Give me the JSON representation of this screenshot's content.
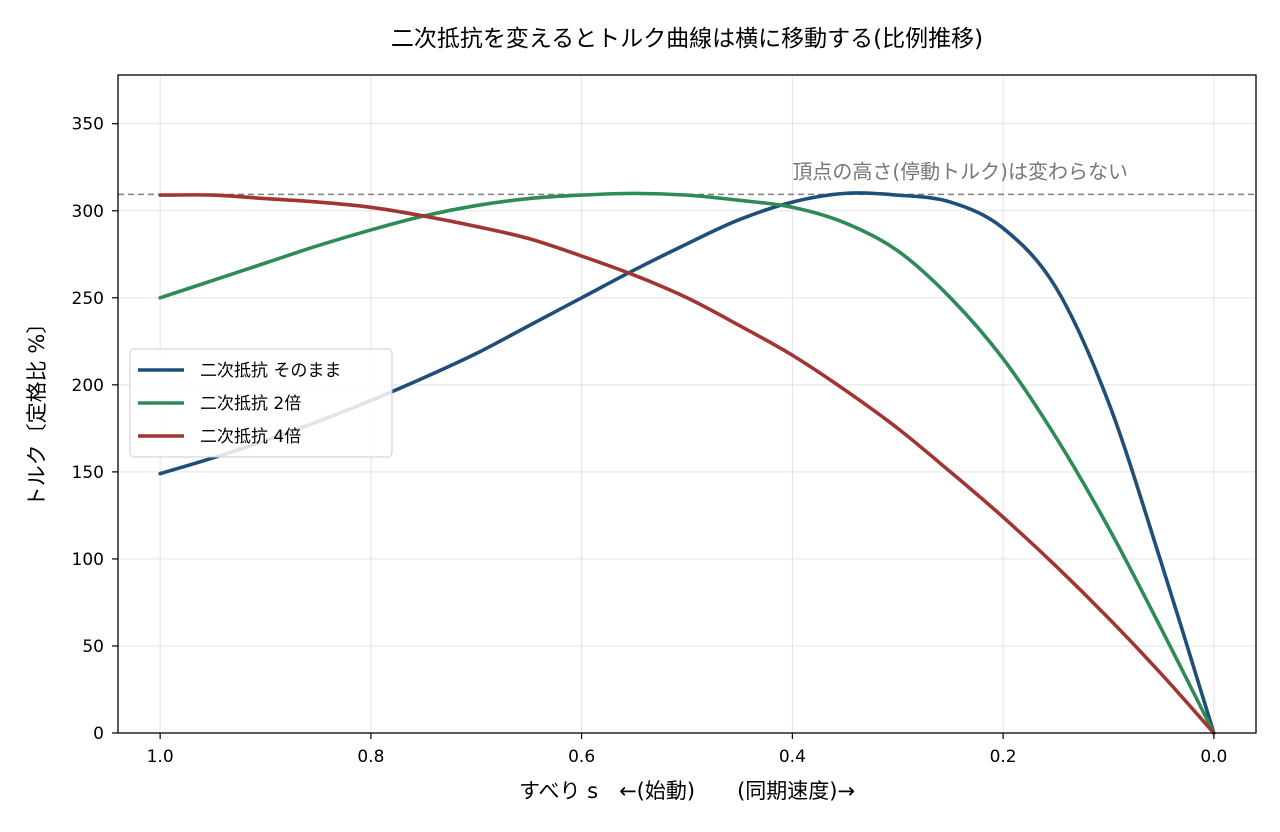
{
  "chart_data": {
    "type": "line",
    "title": "二次抵抗を変えるとトルク曲線は横に移動する(比例推移)",
    "xlabel": "すべり s　←(始動)　　(同期速度)→",
    "ylabel": "トルク〔定格比 %〕",
    "xlim": [
      1.04,
      -0.04
    ],
    "ylim": [
      0,
      378
    ],
    "x_ticks": [
      1.0,
      0.8,
      0.6,
      0.4,
      0.2,
      0.0
    ],
    "x_tick_labels": [
      "1.0",
      "0.8",
      "0.6",
      "0.4",
      "0.2",
      "0.0"
    ],
    "y_ticks": [
      0,
      50,
      100,
      150,
      200,
      250,
      300,
      350
    ],
    "y_tick_labels": [
      "0",
      "50",
      "100",
      "150",
      "200",
      "250",
      "300",
      "350"
    ],
    "grid": true,
    "legend_placement": "center-left",
    "reference_line": {
      "y": 309.4,
      "style": "dashed",
      "color": "#808080",
      "annotation": "頂点の高さ(停動トルク)は変わらない",
      "annotation_x": 0.4
    },
    "series": [
      {
        "name": "二次抵抗 そのまま",
        "color": "#1f4e79",
        "x": [
          1.0,
          0.95,
          0.9,
          0.85,
          0.8,
          0.75,
          0.7,
          0.65,
          0.6,
          0.55,
          0.5,
          0.45,
          0.4,
          0.35,
          0.3,
          0.25,
          0.2,
          0.15,
          0.1,
          0.05,
          0.0
        ],
        "y": [
          149,
          158,
          168,
          179,
          191,
          204,
          218,
          234,
          250,
          266,
          281,
          295,
          305,
          310,
          309,
          305,
          290,
          256,
          190,
          98,
          0
        ]
      },
      {
        "name": "二次抵抗 2倍",
        "color": "#2e8b57",
        "x": [
          1.0,
          0.95,
          0.9,
          0.85,
          0.8,
          0.75,
          0.7,
          0.65,
          0.6,
          0.55,
          0.5,
          0.45,
          0.4,
          0.35,
          0.3,
          0.25,
          0.2,
          0.15,
          0.1,
          0.05,
          0.0
        ],
        "y": [
          250,
          260,
          270,
          280,
          289,
          297,
          303,
          307,
          309,
          310,
          309,
          306,
          302,
          293,
          277,
          250,
          215,
          170,
          118,
          60,
          0
        ]
      },
      {
        "name": "二次抵抗 4倍",
        "color": "#a33434",
        "x": [
          1.0,
          0.95,
          0.9,
          0.85,
          0.8,
          0.75,
          0.7,
          0.65,
          0.6,
          0.55,
          0.5,
          0.45,
          0.4,
          0.35,
          0.3,
          0.25,
          0.2,
          0.15,
          0.1,
          0.05,
          0.0
        ],
        "y": [
          309,
          309,
          307,
          305,
          302,
          297,
          291,
          284,
          274,
          263,
          250,
          234,
          217,
          197,
          175,
          150,
          124,
          96,
          66,
          34,
          0
        ]
      }
    ]
  }
}
